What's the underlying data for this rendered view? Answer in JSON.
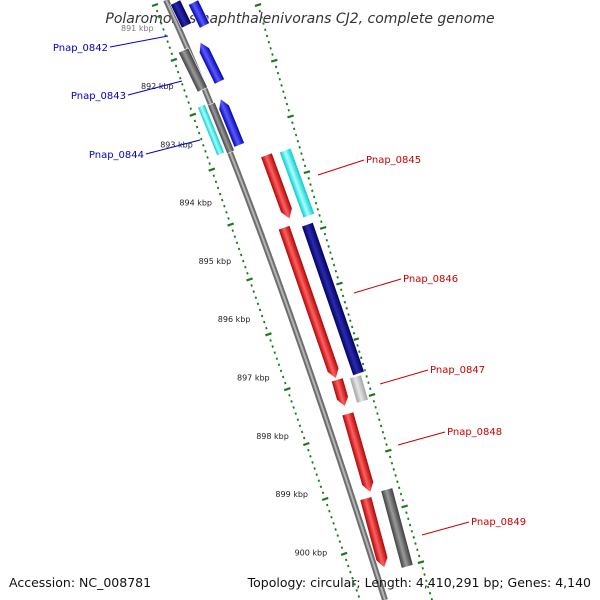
{
  "title": "Polaromonas naphthalenivorans CJ2, complete genome",
  "accession": "Accession: NC_008781",
  "summary": "Topology: circular; Length: 4,410,291 bp; Genes: 4,140",
  "partial_tick_label": "891 kbp",
  "scale_ticks": [
    {
      "label": "892 kbp"
    },
    {
      "label": "893 kbp"
    },
    {
      "label": "894 kbp"
    },
    {
      "label": "895 kbp"
    },
    {
      "label": "896 kbp"
    },
    {
      "label": "897 kbp"
    },
    {
      "label": "898 kbp"
    },
    {
      "label": "899 kbp"
    },
    {
      "label": "900 kbp"
    }
  ],
  "gene_labels": {
    "forward": [
      "Pnap_0842",
      "Pnap_0843",
      "Pnap_0844"
    ],
    "reverse": [
      "Pnap_0845",
      "Pnap_0846",
      "Pnap_0847",
      "Pnap_0848",
      "Pnap_0849"
    ]
  },
  "colors": {
    "forward_label": "#0000cc",
    "reverse_label": "#cc0000",
    "tick": "#1a7a1a",
    "backbone": "#8a8a8a",
    "red": "#ff0000",
    "blue": "#0000ff",
    "navy": "#00007f",
    "cyan": "#00ffff",
    "dark_gray": "#555555",
    "light_gray": "#c8c8c8"
  }
}
